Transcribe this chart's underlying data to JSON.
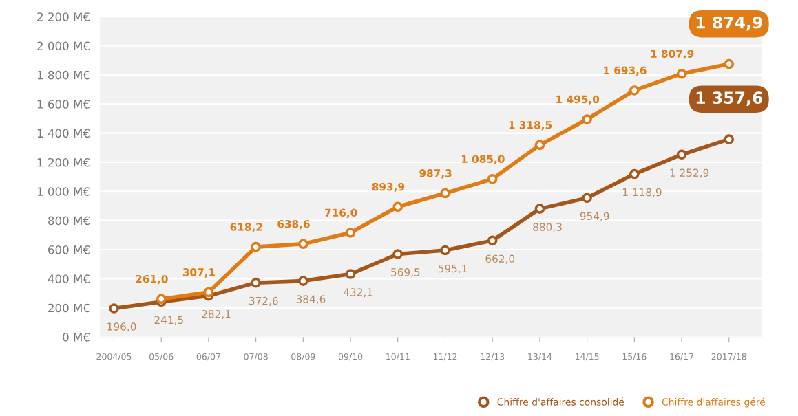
{
  "chart_data": {
    "type": "line",
    "categories": [
      "2004/05",
      "05/06",
      "06/07",
      "07/08",
      "08/09",
      "09/10",
      "10/11",
      "11/12",
      "12/13",
      "13/14",
      "14/15",
      "15/16",
      "16/17",
      "2017/18"
    ],
    "series": [
      {
        "name": "Chiffre d'affaires consolidé",
        "color": "#a5561a",
        "values": [
          196.0,
          241.5,
          282.1,
          372.6,
          384.6,
          432.1,
          569.5,
          595.1,
          662.0,
          880.3,
          954.9,
          1118.9,
          1252.9,
          1357.6
        ],
        "value_labels": [
          "196,0",
          "241,5",
          "282,1",
          "372,6",
          "384,6",
          "432,1",
          "569,5",
          "595,1",
          "662,0",
          "880,3",
          "954,9",
          "1 118,9",
          "1 252,9",
          "1 357,6"
        ]
      },
      {
        "name": "Chiffre d'affaires géré",
        "color": "#e07b16",
        "values": [
          null,
          261.0,
          307.1,
          618.2,
          638.6,
          716.0,
          893.9,
          987.3,
          1085.0,
          1318.5,
          1495.0,
          1693.6,
          1807.9,
          1874.9
        ],
        "value_labels": [
          null,
          "261,0",
          "307,1",
          "618,2",
          "638,6",
          "716,0",
          "893,9",
          "987,3",
          "1 085,0",
          "1 318,5",
          "1 495,0",
          "1 693,6",
          "1 807,9",
          "1 874,9"
        ]
      }
    ],
    "ylim": [
      0,
      2200
    ],
    "yticks": [
      {
        "value": 0,
        "label": "0 M€"
      },
      {
        "value": 200,
        "label": "200 M€"
      },
      {
        "value": 400,
        "label": "400 M€"
      },
      {
        "value": 600,
        "label": "600 M€"
      },
      {
        "value": 800,
        "label": "800 M€"
      },
      {
        "value": 1000,
        "label": "1 000 M€"
      },
      {
        "value": 1200,
        "label": "1 200 M€"
      },
      {
        "value": 1400,
        "label": "1 400 M€"
      },
      {
        "value": 1600,
        "label": "1 600 M€"
      },
      {
        "value": 1800,
        "label": "1 800 M€"
      },
      {
        "value": 2000,
        "label": "2 000 M€"
      },
      {
        "value": 2200,
        "label": "2 200 M€"
      }
    ],
    "grid": "y",
    "legend": "bottom right",
    "marker": "circle",
    "line_style": "solid"
  }
}
